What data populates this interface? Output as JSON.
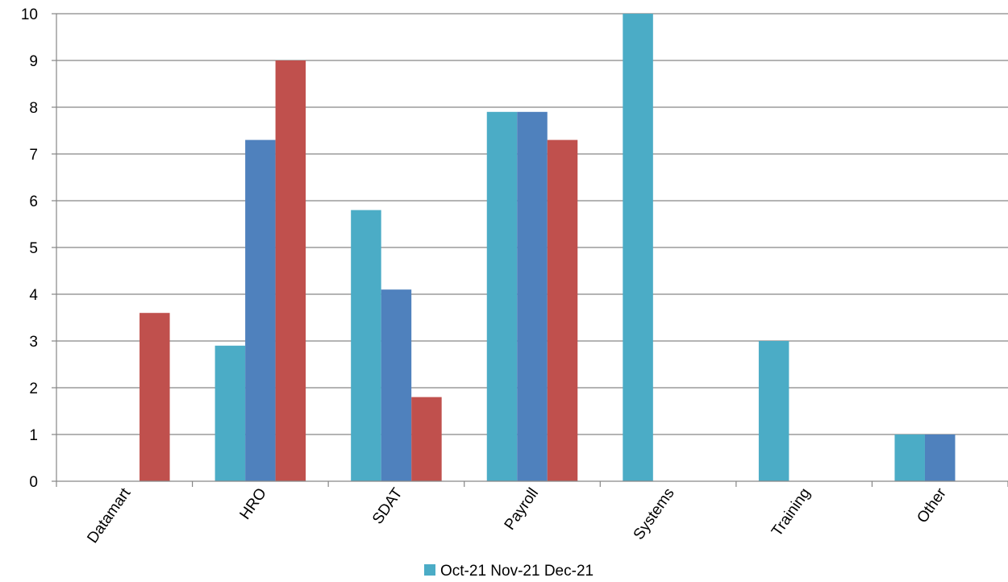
{
  "chart_data": {
    "type": "bar",
    "categories": [
      "Datamart",
      "HRO",
      "SDAT",
      "Payroll",
      "Systems",
      "Training",
      "Other"
    ],
    "series": [
      {
        "name": "Oct-21",
        "color": "#4BACC6",
        "values": [
          0,
          2.9,
          5.8,
          7.9,
          10,
          3,
          1
        ]
      },
      {
        "name": "Nov-21",
        "color": "#4F81BD",
        "values": [
          0,
          7.3,
          4.1,
          7.9,
          0,
          0,
          1
        ]
      },
      {
        "name": "Dec-21",
        "color": "#C0504D",
        "values": [
          3.6,
          9,
          1.8,
          7.3,
          0,
          0,
          0
        ]
      }
    ],
    "yticks": [
      "0",
      "1",
      "2",
      "3",
      "4",
      "5",
      "6",
      "7",
      "8",
      "9",
      "10"
    ],
    "ylim": [
      0,
      10
    ],
    "grid": true,
    "legend": {
      "position": "bottom",
      "text": "Oct-21 Nov-21 Dec-21",
      "swatch_color": "#4BACC6"
    }
  }
}
